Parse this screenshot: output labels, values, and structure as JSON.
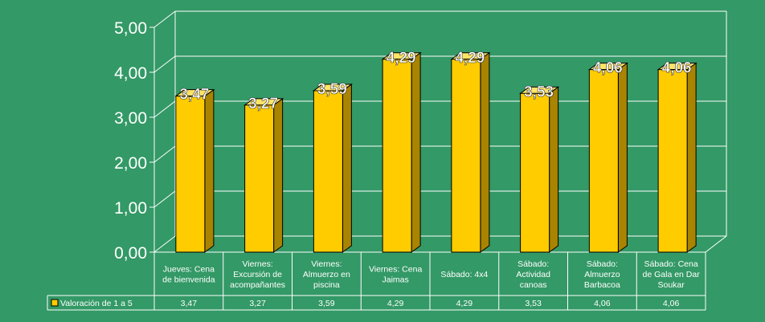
{
  "chart_data": {
    "type": "bar",
    "categories": [
      [
        "Jueves: Cena",
        "de bienvenida"
      ],
      [
        "Viernes:",
        "Excursión de",
        "acompañantes"
      ],
      [
        "Viernes:",
        "Almuerzo en",
        "piscina"
      ],
      [
        "Viernes: Cena",
        "Jaimas"
      ],
      [
        "Sábado: 4x4"
      ],
      [
        "Sábado:",
        "Actividad",
        "canoas"
      ],
      [
        "Sábado:",
        "Almuerzo",
        "Barbacoa"
      ],
      [
        "Sábado: Cena",
        "de Gala en Dar",
        "Soukar"
      ]
    ],
    "series": [
      {
        "name": "Valoración de 1 a 5",
        "values": [
          3.47,
          3.27,
          3.59,
          4.29,
          4.29,
          3.53,
          4.06,
          4.06
        ],
        "labels": [
          "3,47",
          "3,27",
          "3,59",
          "4,29",
          "4,29",
          "3,53",
          "4,06",
          "4,06"
        ]
      }
    ],
    "yticks": [
      "0,00",
      "1,00",
      "2,00",
      "3,00",
      "4,00",
      "5,00"
    ],
    "ylim": [
      0,
      5
    ],
    "grid": true,
    "legend": "data-table-left",
    "colors": {
      "background": "#339966",
      "bar_front": "#FFCC00",
      "bar_side": "#A88400",
      "bar_top": "#FFE466",
      "grid": "#FFFFFF",
      "label": "#FFFFFF"
    }
  }
}
